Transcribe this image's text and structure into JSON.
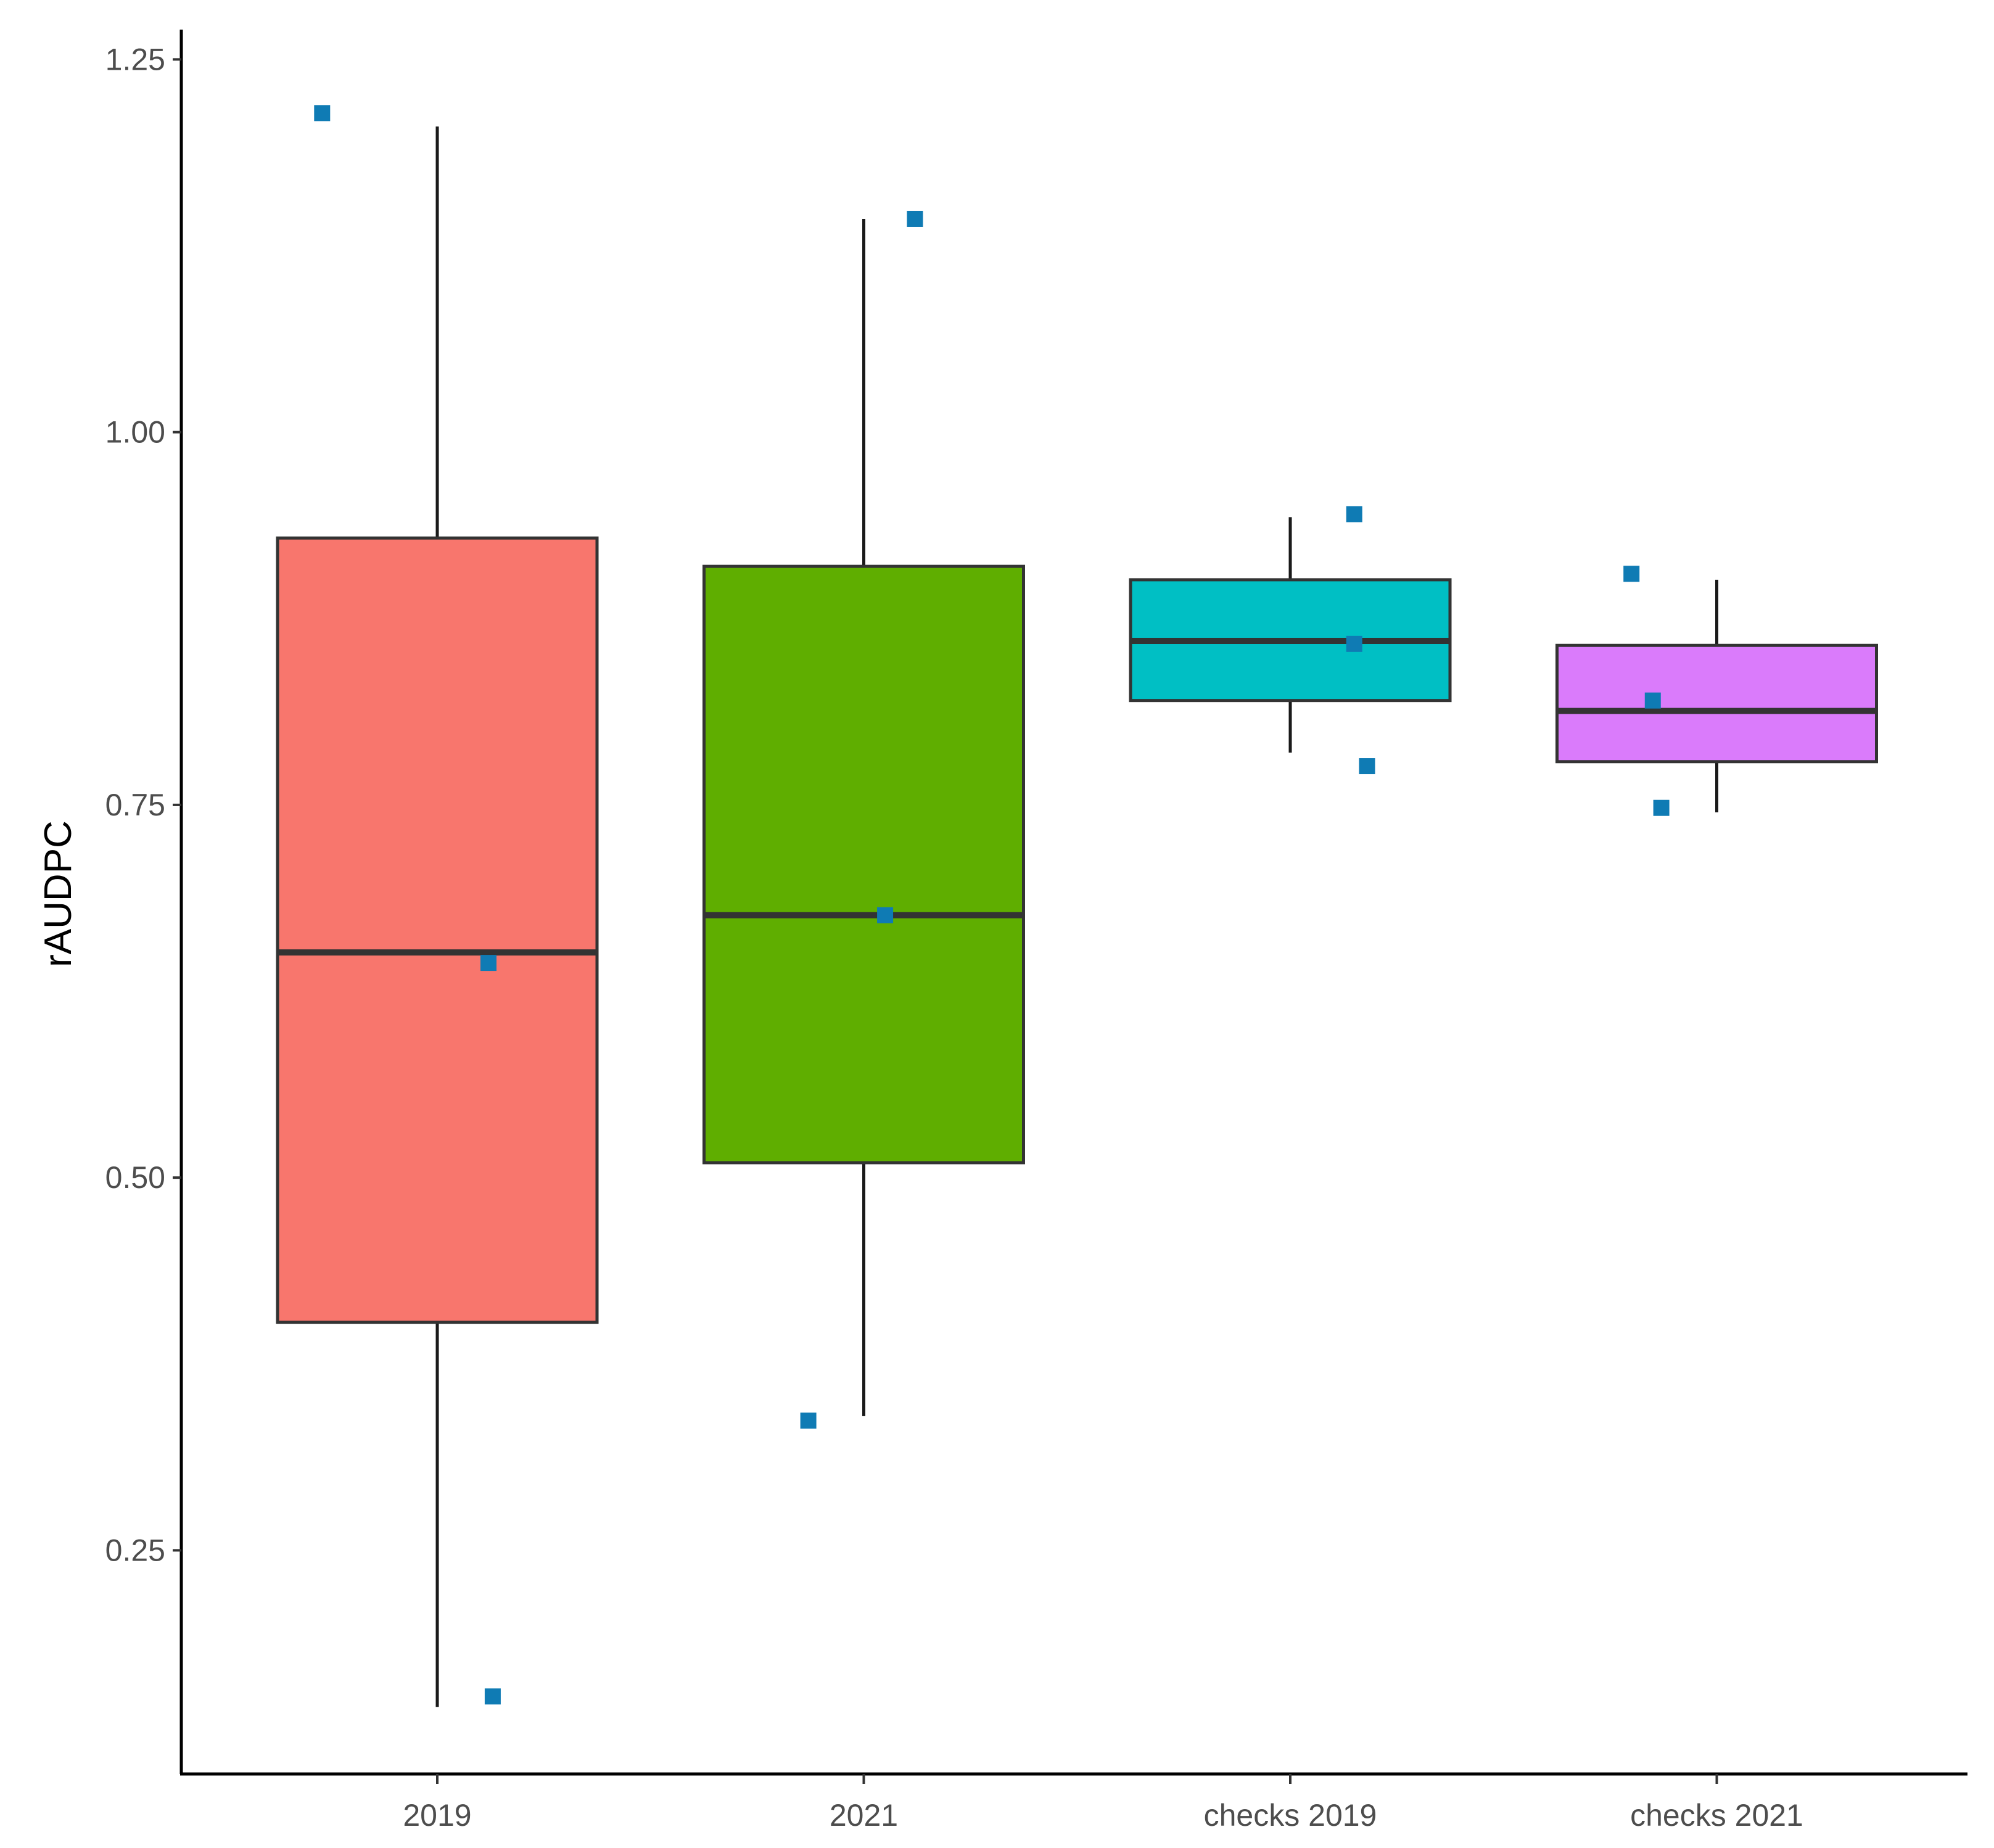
{
  "chart_data": {
    "type": "box",
    "title": "",
    "xlabel": "",
    "ylabel": "rAUDPC",
    "ylim": [
      0.1,
      1.27
    ],
    "y_ticks": [
      {
        "value": 0.25,
        "label": "0.25"
      },
      {
        "value": 0.5,
        "label": "0.50"
      },
      {
        "value": 0.75,
        "label": "0.75"
      },
      {
        "value": 1.0,
        "label": "1.00"
      },
      {
        "value": 1.25,
        "label": "1.25"
      }
    ],
    "grid": false,
    "legend": "none",
    "point_color": "#0F7BB4",
    "categories": [
      "2019",
      "2021",
      "checks 2019",
      "checks 2021"
    ],
    "boxes": [
      {
        "category": "2019",
        "fill": "#F8766D",
        "whisker_low": 0.145,
        "q1": 0.403,
        "median": 0.651,
        "q3": 0.929,
        "whisker_high": 1.205
      },
      {
        "category": "2021",
        "fill": "#5FAE00",
        "whisker_low": 0.34,
        "q1": 0.51,
        "median": 0.676,
        "q3": 0.91,
        "whisker_high": 1.143
      },
      {
        "category": "checks 2019",
        "fill": "#00BFC4",
        "whisker_low": 0.785,
        "q1": 0.82,
        "median": 0.86,
        "q3": 0.901,
        "whisker_high": 0.943
      },
      {
        "category": "checks 2021",
        "fill": "#DA7BFB",
        "whisker_low": 0.745,
        "q1": 0.779,
        "median": 0.813,
        "q3": 0.857,
        "whisker_high": 0.901
      }
    ],
    "points": [
      {
        "category": "2019",
        "jitter": -0.27,
        "y": 1.214
      },
      {
        "category": "2019",
        "jitter": 0.12,
        "y": 0.644
      },
      {
        "category": "2019",
        "jitter": 0.13,
        "y": 0.152
      },
      {
        "category": "2021",
        "jitter": 0.12,
        "y": 1.143
      },
      {
        "category": "2021",
        "jitter": 0.05,
        "y": 0.676
      },
      {
        "category": "2021",
        "jitter": -0.13,
        "y": 0.337
      },
      {
        "category": "checks 2019",
        "jitter": 0.15,
        "y": 0.945
      },
      {
        "category": "checks 2019",
        "jitter": 0.15,
        "y": 0.858
      },
      {
        "category": "checks 2019",
        "jitter": 0.18,
        "y": 0.776
      },
      {
        "category": "checks 2021",
        "jitter": -0.2,
        "y": 0.905
      },
      {
        "category": "checks 2021",
        "jitter": -0.15,
        "y": 0.82
      },
      {
        "category": "checks 2021",
        "jitter": -0.13,
        "y": 0.748
      }
    ]
  }
}
